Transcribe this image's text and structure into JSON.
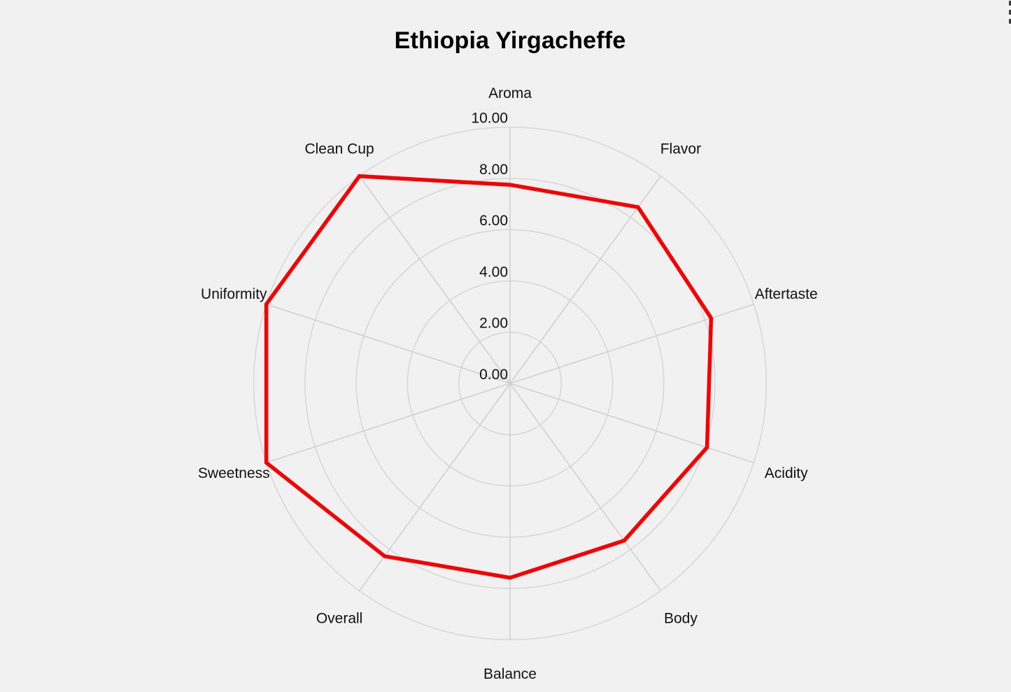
{
  "page": {
    "background_color": "#f1f1f2",
    "corner_icon": "vertical-ellipsis-icon",
    "corner_icon_color": "#3c3c3c"
  },
  "chart_data": {
    "type": "radar",
    "title": "Ethiopia Yirgacheffe",
    "categories": [
      "Aroma",
      "Flavor",
      "Aftertaste",
      "Acidity",
      "Body",
      "Balance",
      "Overall",
      "Sweetness",
      "Uniformity",
      "Clean Cup"
    ],
    "series": [
      {
        "name": "Ethiopia Yirgacheffe",
        "values": [
          7.75,
          8.5,
          8.25,
          8.08,
          7.58,
          7.58,
          8.33,
          10.0,
          10.0,
          10.0
        ]
      }
    ],
    "radial_axis": {
      "min": 0,
      "max": 10,
      "tick_interval": 2,
      "tick_labels": [
        "0.00",
        "2.00",
        "4.00",
        "6.00",
        "8.00",
        "10.00"
      ]
    },
    "start_angle_deg": 0,
    "direction": "clockwise",
    "grid": true,
    "legend": "none",
    "line_color": "#f50202",
    "fill": "none",
    "ring_color": "#d6d6d9",
    "spoke_color": "#cfcfd2",
    "text_color": "#111111"
  }
}
